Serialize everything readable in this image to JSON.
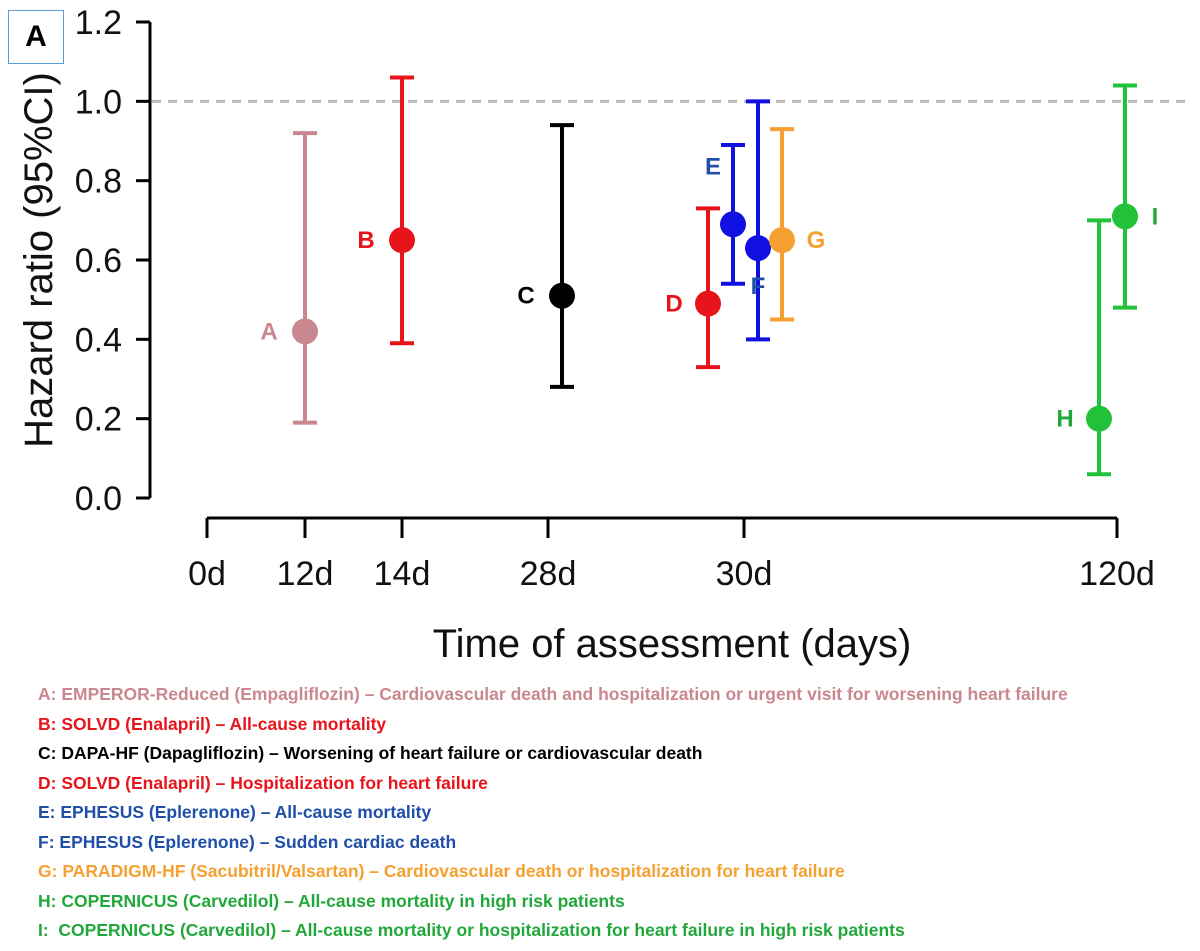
{
  "panel_label": "A",
  "chart_data": {
    "type": "scatter",
    "subtype": "point-with-error-bars",
    "ylabel": "Hazard ratio (95%CI)",
    "xlabel": "Time of assessment (days)",
    "ylim": [
      0.0,
      1.2
    ],
    "yticks": [
      "0.0",
      "0.2",
      "0.4",
      "0.6",
      "0.8",
      "1.0",
      "1.2"
    ],
    "ytick_values": [
      0.0,
      0.2,
      0.4,
      0.6,
      0.8,
      1.0,
      1.2
    ],
    "xticks": [
      "0d",
      "12d",
      "14d",
      "28d",
      "30d",
      "120d"
    ],
    "reference_line": 1.0,
    "grid": false,
    "points": [
      {
        "label": "A",
        "timepoint": "12d",
        "hr": 0.42,
        "ci_low": 0.19,
        "ci_high": 0.92,
        "color": "#c9878f"
      },
      {
        "label": "B",
        "timepoint": "14d",
        "hr": 0.65,
        "ci_low": 0.39,
        "ci_high": 1.06,
        "color": "#e8141c"
      },
      {
        "label": "C",
        "timepoint": "28d",
        "hr": 0.51,
        "ci_low": 0.28,
        "ci_high": 0.94,
        "color": "#000000"
      },
      {
        "label": "D",
        "timepoint": "30d",
        "hr": 0.49,
        "ci_low": 0.33,
        "ci_high": 0.73,
        "color": "#e8141c"
      },
      {
        "label": "E",
        "timepoint": "30d",
        "hr": 0.69,
        "ci_low": 0.54,
        "ci_high": 0.89,
        "color": "#1010e0"
      },
      {
        "label": "F",
        "timepoint": "30d",
        "hr": 0.63,
        "ci_low": 0.4,
        "ci_high": 1.0,
        "color": "#1010e0"
      },
      {
        "label": "G",
        "timepoint": "30d",
        "hr": 0.65,
        "ci_low": 0.45,
        "ci_high": 0.93,
        "color": "#f5a030"
      },
      {
        "label": "H",
        "timepoint": "120d",
        "hr": 0.2,
        "ci_low": 0.06,
        "ci_high": 0.7,
        "color": "#22c13a"
      },
      {
        "label": "I",
        "timepoint": "120d",
        "hr": 0.71,
        "ci_low": 0.48,
        "ci_high": 1.04,
        "color": "#22c13a"
      }
    ],
    "point_label_colors": {
      "A": "#c9878f",
      "B": "#e8141c",
      "C": "#000000",
      "D": "#e8141c",
      "E": "#1f4fa8",
      "F": "#1f4fa8",
      "G": "#f5a030",
      "H": "#22a83a",
      "I": "#22a83a"
    },
    "legend": [
      {
        "prefix": "A: ",
        "text": "EMPEROR-Reduced (Empagliflozin) – Cardiovascular death and hospitalization or urgent visit for worsening heart failure",
        "color": "#c9878f"
      },
      {
        "prefix": "B: ",
        "text": "SOLVD (Enalapril) – All-cause mortality",
        "color": "#e8141c"
      },
      {
        "prefix": "C: ",
        "text": "DAPA-HF (Dapagliflozin) – Worsening of heart failure or cardiovascular death",
        "color": "#000000"
      },
      {
        "prefix": "D: ",
        "text": "SOLVD (Enalapril) – Hospitalization for heart failure",
        "color": "#e8141c"
      },
      {
        "prefix": "E: ",
        "text": "EPHESUS (Eplerenone) – All-cause mortality",
        "color": "#1f4fa8"
      },
      {
        "prefix": "F: ",
        "text": "EPHESUS (Eplerenone) – Sudden cardiac death",
        "color": "#1f4fa8"
      },
      {
        "prefix": "G: ",
        "text": "PARADIGM-HF (Sacubitril/Valsartan) – Cardiovascular death or hospitalization for heart failure",
        "color": "#f5a030"
      },
      {
        "prefix": "H: ",
        "text": "COPERNICUS (Carvedilol) – All-cause mortality in high risk patients",
        "color": "#22a83a"
      },
      {
        "prefix": "I:  ",
        "text": "COPERNICUS (Carvedilol) – All-cause mortality or hospitalization for heart failure in high risk patients",
        "color": "#22a83a"
      }
    ]
  }
}
